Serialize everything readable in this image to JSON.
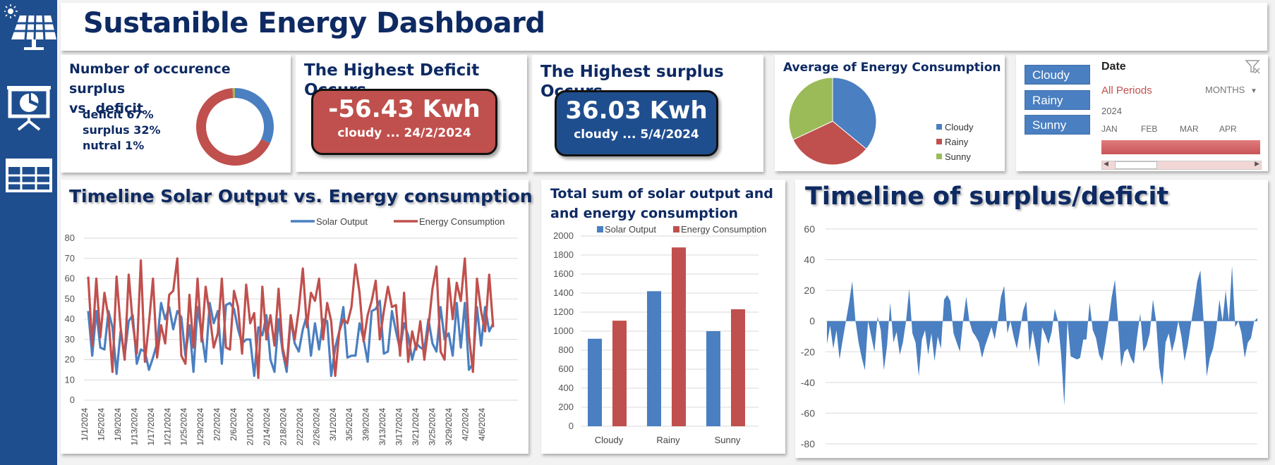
{
  "dashboard": {
    "title": "Sustanible Energy Dashboard",
    "colors": {
      "sidebar": "#1f4e8f",
      "solar": "#4a7fc1",
      "consumption": "#c0504d",
      "sunny": "#9bbb59",
      "deficit_card": "#c0504d",
      "surplus_card": "#1f4e8f",
      "title": "#0e2a63"
    }
  },
  "sidebar": {
    "icons": [
      "solar-panel-icon",
      "presentation-chart-icon",
      "table-grid-icon"
    ]
  },
  "occurrence": {
    "title_line1": "Number of occurence surplus",
    "title_line2": "vs. deficit",
    "deficit": "deficit 67%",
    "surplus": "surplus 32%",
    "neutral": "nutral 1%"
  },
  "deficit_kpi": {
    "title": "The Highest Deficit Occurs",
    "value": "-56.43 Kwh",
    "sub": "cloudy ... 24/2/2024"
  },
  "surplus_kpi": {
    "title": "The Highest surplus Occurs",
    "value": "36.03 Kwh",
    "sub": "cloudy ... 5/4/2024"
  },
  "slicer": {
    "buttons": [
      "Cloudy",
      "Rainy",
      "Sunny"
    ],
    "timeline_title": "Date",
    "periods": "All Periods",
    "level": "MONTHS",
    "year": "2024",
    "months": [
      "JAN",
      "FEB",
      "MAR",
      "APR"
    ]
  },
  "chart_data": [
    {
      "type": "pie",
      "id": "donut",
      "categories": [
        "deficit",
        "surplus",
        "nutral"
      ],
      "values": [
        67,
        32,
        1
      ],
      "colors": [
        "#c0504d",
        "#4a7fc1",
        "#9bbb59"
      ]
    },
    {
      "type": "pie",
      "id": "avg-pie",
      "title": "Average of Energy Consumption",
      "categories": [
        "Cloudy",
        "Rainy",
        "Sunny"
      ],
      "values": [
        36,
        32,
        32
      ],
      "colors": [
        "#4a7fc1",
        "#c0504d",
        "#9bbb59"
      ]
    },
    {
      "type": "line",
      "id": "timeline",
      "title": "Timeline Solar Output vs. Energy consumption",
      "ylim": [
        0,
        80
      ],
      "yticks": [
        0,
        10,
        20,
        30,
        40,
        50,
        60,
        70,
        80
      ],
      "xtick_labels": [
        "1/1/2024",
        "1/5/2024",
        "1/9/2024",
        "1/13/2024",
        "1/17/2024",
        "1/21/2024",
        "1/25/2024",
        "1/29/2024",
        "2/2/2024",
        "2/6/2024",
        "2/10/2024",
        "2/14/2024",
        "2/18/2024",
        "2/22/2024",
        "2/26/2024",
        "3/1/2024",
        "3/5/2024",
        "3/9/2024",
        "3/13/2024",
        "3/17/2024",
        "3/21/2024",
        "3/25/2024",
        "3/29/2024",
        "4/2/2024",
        "4/6/2024"
      ],
      "series": [
        {
          "name": "Solar Output",
          "color": "#4a7fc1",
          "values": [
            44,
            22,
            44,
            26,
            25,
            44,
            36,
            13,
            34,
            22,
            39,
            42,
            18,
            25,
            24,
            15,
            21,
            28,
            48,
            40,
            46,
            35,
            44,
            41,
            22,
            37,
            14,
            46,
            33,
            19,
            48,
            38,
            44,
            18,
            47,
            48,
            45,
            35,
            28,
            30,
            30,
            12,
            36,
            32,
            42,
            20,
            14,
            40,
            24,
            14,
            40,
            28,
            24,
            35,
            42,
            22,
            38,
            25,
            40,
            39,
            12,
            26,
            34,
            46,
            21,
            22,
            22,
            38,
            30,
            19,
            44,
            45,
            49,
            23,
            24,
            44,
            34,
            25,
            38,
            32,
            20,
            28,
            26,
            25,
            40,
            28,
            24,
            46,
            30,
            33,
            22,
            48,
            26,
            48,
            15,
            18,
            46,
            27,
            46,
            34,
            38
          ]
        },
        {
          "name": "Energy Consumption",
          "color": "#c0504d",
          "values": [
            61,
            27,
            60,
            31,
            53,
            41,
            14,
            61,
            36,
            20,
            62,
            38,
            23,
            69,
            19,
            38,
            60,
            21,
            37,
            28,
            52,
            54,
            70,
            22,
            18,
            52,
            26,
            60,
            29,
            56,
            42,
            26,
            33,
            60,
            26,
            25,
            54,
            46,
            23,
            57,
            38,
            43,
            11,
            56,
            30,
            42,
            27,
            55,
            26,
            17,
            42,
            30,
            45,
            65,
            36,
            53,
            49,
            60,
            30,
            48,
            39,
            12,
            34,
            40,
            38,
            46,
            67,
            53,
            29,
            42,
            49,
            59,
            30,
            44,
            56,
            46,
            47,
            22,
            53,
            19,
            34,
            25,
            39,
            20,
            36,
            55,
            66,
            24,
            20,
            60,
            40,
            58,
            49,
            70,
            32,
            14,
            60,
            44,
            34,
            62,
            36
          ]
        }
      ]
    },
    {
      "type": "bar",
      "id": "totals",
      "title": "Total sum of solar output and and energy consumption",
      "categories": [
        "Cloudy",
        "Rainy",
        "Sunny"
      ],
      "ylim": [
        0,
        2000
      ],
      "yticks": [
        0,
        200,
        400,
        600,
        800,
        1000,
        1200,
        1400,
        1600,
        1800,
        2000
      ],
      "series": [
        {
          "name": "Solar Output",
          "color": "#4a7fc1",
          "values": [
            920,
            1420,
            1000
          ]
        },
        {
          "name": "Energy Consumption",
          "color": "#c0504d",
          "values": [
            1110,
            1880,
            1230
          ]
        }
      ]
    },
    {
      "type": "area",
      "id": "surplus-deficit",
      "title": "Timeline of surplus/deficit",
      "ylim": [
        -80,
        60
      ],
      "yticks": [
        60,
        40,
        20,
        0,
        -20,
        -40,
        -60,
        -80
      ],
      "series": [
        {
          "name": "",
          "color": "#4a7fc1",
          "values": [
            -15,
            -3,
            -18,
            -6,
            -25,
            -12,
            0,
            12,
            26,
            0,
            -14,
            -24,
            -32,
            0,
            -10,
            -20,
            3,
            -6,
            -32,
            -16,
            12,
            -14,
            -7,
            -22,
            -14,
            0,
            21,
            -8,
            -14,
            -36,
            -12,
            -6,
            -22,
            -8,
            -26,
            -10,
            -18,
            14,
            17,
            13,
            -8,
            -14,
            -20,
            0,
            16,
            0,
            -7,
            -10,
            -14,
            -24,
            -16,
            -10,
            -4,
            -12,
            0,
            16,
            23,
            -8,
            0,
            -10,
            -18,
            -6,
            7,
            13,
            -20,
            -6,
            -18,
            -30,
            -4,
            -9,
            -15,
            -7,
            8,
            0,
            -22,
            -55,
            0,
            -23,
            -24,
            -25,
            -24,
            -12,
            -12,
            12,
            -6,
            -11,
            -22,
            -26,
            -14,
            0,
            16,
            27,
            0,
            -30,
            -20,
            -18,
            -24,
            -28,
            -10,
            5,
            -20,
            -16,
            -8,
            14,
            0,
            -30,
            -42,
            -14,
            -8,
            -20,
            -12,
            0,
            -10,
            -26,
            -16,
            -2,
            11,
            26,
            33,
            0,
            -36,
            -24,
            -18,
            -6,
            14,
            0,
            20,
            0,
            36,
            -4,
            0,
            -8,
            -24,
            -14,
            -11,
            0,
            2
          ]
        }
      ]
    }
  ]
}
